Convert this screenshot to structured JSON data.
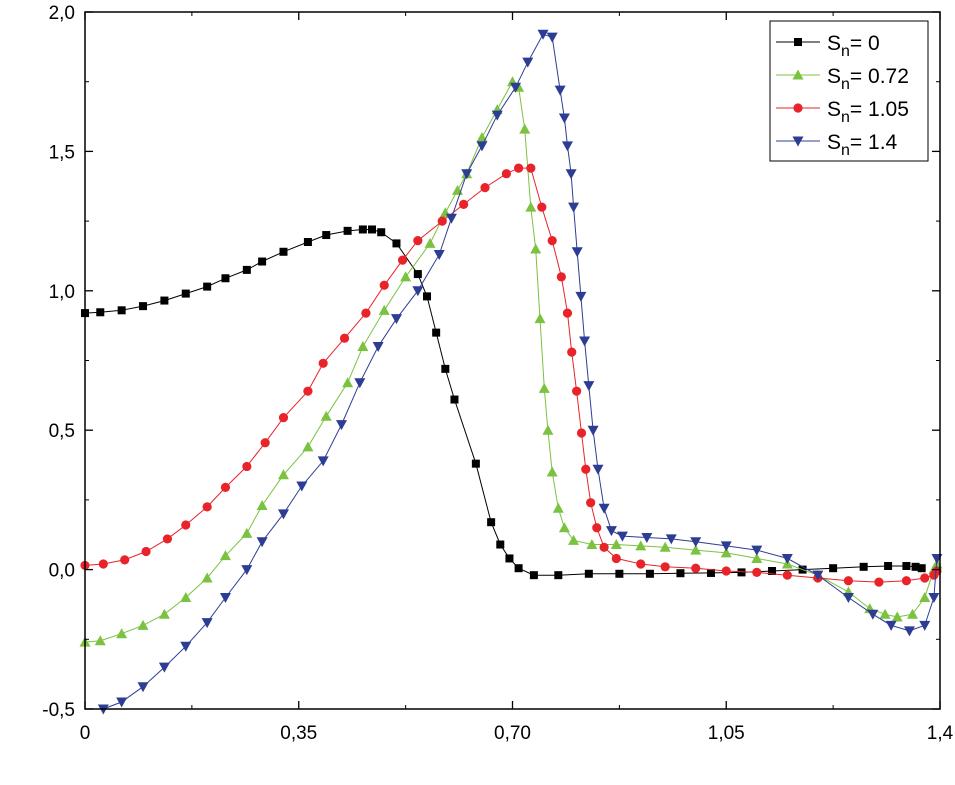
{
  "chart_data": {
    "type": "line",
    "title": "",
    "xlabel": "",
    "ylabel": "",
    "xlim": [
      0,
      1.4
    ],
    "ylim": [
      -0.5,
      2.0
    ],
    "grid": false,
    "legend_position": "top-right",
    "x_ticks": [
      {
        "value": 0,
        "label": "0"
      },
      {
        "value": 0.35,
        "label": "0,35"
      },
      {
        "value": 0.7,
        "label": "0,70"
      },
      {
        "value": 1.05,
        "label": "1,05"
      },
      {
        "value": 1.4,
        "label": "1,4"
      }
    ],
    "y_ticks": [
      {
        "value": -0.5,
        "label": "-0,5"
      },
      {
        "value": 0.0,
        "label": "0,0"
      },
      {
        "value": 0.5,
        "label": "0,5"
      },
      {
        "value": 1.0,
        "label": "1,0"
      },
      {
        "value": 1.5,
        "label": "1,5"
      },
      {
        "value": 2.0,
        "label": "2,0"
      }
    ],
    "series": [
      {
        "name": "Sn= 0",
        "legend_main": "S",
        "legend_sub": "n",
        "legend_value": "= 0",
        "color": "#000000",
        "marker": "square",
        "points": [
          [
            0.0,
            0.92
          ],
          [
            0.025,
            0.923
          ],
          [
            0.06,
            0.93
          ],
          [
            0.095,
            0.945
          ],
          [
            0.13,
            0.965
          ],
          [
            0.165,
            0.99
          ],
          [
            0.2,
            1.015
          ],
          [
            0.23,
            1.045
          ],
          [
            0.265,
            1.075
          ],
          [
            0.29,
            1.105
          ],
          [
            0.325,
            1.14
          ],
          [
            0.365,
            1.175
          ],
          [
            0.395,
            1.2
          ],
          [
            0.43,
            1.215
          ],
          [
            0.455,
            1.22
          ],
          [
            0.47,
            1.22
          ],
          [
            0.485,
            1.21
          ],
          [
            0.51,
            1.17
          ],
          [
            0.545,
            1.06
          ],
          [
            0.56,
            0.98
          ],
          [
            0.575,
            0.85
          ],
          [
            0.59,
            0.72
          ],
          [
            0.605,
            0.61
          ],
          [
            0.64,
            0.38
          ],
          [
            0.665,
            0.17
          ],
          [
            0.68,
            0.09
          ],
          [
            0.695,
            0.04
          ],
          [
            0.71,
            0.005
          ],
          [
            0.735,
            -0.02
          ],
          [
            0.775,
            -0.02
          ],
          [
            0.825,
            -0.015
          ],
          [
            0.875,
            -0.015
          ],
          [
            0.925,
            -0.015
          ],
          [
            0.975,
            -0.013
          ],
          [
            1.025,
            -0.012
          ],
          [
            1.075,
            -0.01
          ],
          [
            1.125,
            -0.005
          ],
          [
            1.175,
            0.0
          ],
          [
            1.225,
            0.005
          ],
          [
            1.275,
            0.01
          ],
          [
            1.315,
            0.013
          ],
          [
            1.345,
            0.013
          ],
          [
            1.36,
            0.01
          ],
          [
            1.37,
            0.005
          ]
        ]
      },
      {
        "name": "Sn= 0.72",
        "legend_main": "S",
        "legend_sub": "n",
        "legend_value": "= 0.72",
        "color": "#7cc241",
        "line_color": "#7cc241",
        "marker": "triangle-up",
        "points": [
          [
            0.0,
            -0.26
          ],
          [
            0.025,
            -0.255
          ],
          [
            0.06,
            -0.23
          ],
          [
            0.095,
            -0.2
          ],
          [
            0.13,
            -0.16
          ],
          [
            0.165,
            -0.1
          ],
          [
            0.2,
            -0.03
          ],
          [
            0.23,
            0.05
          ],
          [
            0.265,
            0.13
          ],
          [
            0.29,
            0.23
          ],
          [
            0.325,
            0.34
          ],
          [
            0.365,
            0.44
          ],
          [
            0.395,
            0.55
          ],
          [
            0.43,
            0.67
          ],
          [
            0.455,
            0.8
          ],
          [
            0.49,
            0.93
          ],
          [
            0.525,
            1.05
          ],
          [
            0.565,
            1.17
          ],
          [
            0.59,
            1.28
          ],
          [
            0.61,
            1.36
          ],
          [
            0.625,
            1.42
          ],
          [
            0.65,
            1.55
          ],
          [
            0.675,
            1.65
          ],
          [
            0.7,
            1.75
          ],
          [
            0.71,
            1.73
          ],
          [
            0.72,
            1.58
          ],
          [
            0.73,
            1.3
          ],
          [
            0.738,
            1.15
          ],
          [
            0.745,
            0.9
          ],
          [
            0.752,
            0.65
          ],
          [
            0.758,
            0.5
          ],
          [
            0.765,
            0.35
          ],
          [
            0.775,
            0.22
          ],
          [
            0.785,
            0.15
          ],
          [
            0.8,
            0.105
          ],
          [
            0.83,
            0.09
          ],
          [
            0.87,
            0.09
          ],
          [
            0.91,
            0.085
          ],
          [
            0.95,
            0.08
          ],
          [
            1.0,
            0.07
          ],
          [
            1.05,
            0.06
          ],
          [
            1.1,
            0.04
          ],
          [
            1.15,
            0.02
          ],
          [
            1.2,
            -0.02
          ],
          [
            1.25,
            -0.08
          ],
          [
            1.285,
            -0.14
          ],
          [
            1.31,
            -0.16
          ],
          [
            1.33,
            -0.17
          ],
          [
            1.355,
            -0.16
          ],
          [
            1.375,
            -0.1
          ],
          [
            1.39,
            0.0
          ],
          [
            1.395,
            0.02
          ]
        ]
      },
      {
        "name": "Sn= 1.05",
        "legend_main": "S",
        "legend_sub": "n",
        "legend_value": "= 1.05",
        "color": "#e8232a",
        "line_color": "#e8232a",
        "marker": "circle",
        "points": [
          [
            0.0,
            0.015
          ],
          [
            0.03,
            0.02
          ],
          [
            0.065,
            0.035
          ],
          [
            0.1,
            0.065
          ],
          [
            0.135,
            0.11
          ],
          [
            0.165,
            0.16
          ],
          [
            0.2,
            0.225
          ],
          [
            0.23,
            0.295
          ],
          [
            0.265,
            0.37
          ],
          [
            0.295,
            0.455
          ],
          [
            0.325,
            0.545
          ],
          [
            0.365,
            0.64
          ],
          [
            0.39,
            0.74
          ],
          [
            0.425,
            0.83
          ],
          [
            0.46,
            0.92
          ],
          [
            0.49,
            1.02
          ],
          [
            0.52,
            1.11
          ],
          [
            0.545,
            1.18
          ],
          [
            0.585,
            1.25
          ],
          [
            0.62,
            1.31
          ],
          [
            0.655,
            1.37
          ],
          [
            0.69,
            1.42
          ],
          [
            0.71,
            1.44
          ],
          [
            0.73,
            1.44
          ],
          [
            0.748,
            1.3
          ],
          [
            0.765,
            1.18
          ],
          [
            0.78,
            1.05
          ],
          [
            0.79,
            0.92
          ],
          [
            0.797,
            0.78
          ],
          [
            0.805,
            0.64
          ],
          [
            0.813,
            0.49
          ],
          [
            0.82,
            0.36
          ],
          [
            0.828,
            0.24
          ],
          [
            0.838,
            0.15
          ],
          [
            0.85,
            0.08
          ],
          [
            0.87,
            0.04
          ],
          [
            0.91,
            0.02
          ],
          [
            0.95,
            0.01
          ],
          [
            1.0,
            0.005
          ],
          [
            1.05,
            -0.005
          ],
          [
            1.1,
            -0.01
          ],
          [
            1.15,
            -0.02
          ],
          [
            1.2,
            -0.03
          ],
          [
            1.25,
            -0.04
          ],
          [
            1.3,
            -0.045
          ],
          [
            1.345,
            -0.04
          ],
          [
            1.375,
            -0.03
          ],
          [
            1.39,
            -0.02
          ],
          [
            1.395,
            -0.005
          ]
        ]
      },
      {
        "name": "Sn= 1.4",
        "legend_main": "S",
        "legend_sub": "n",
        "legend_value": "= 1.4",
        "color": "#2e3d94",
        "line_color": "#2e3d94",
        "marker": "triangle-down",
        "points": [
          [
            0.03,
            -0.5
          ],
          [
            0.06,
            -0.475
          ],
          [
            0.095,
            -0.42
          ],
          [
            0.13,
            -0.35
          ],
          [
            0.165,
            -0.275
          ],
          [
            0.2,
            -0.19
          ],
          [
            0.23,
            -0.1
          ],
          [
            0.265,
            0.0
          ],
          [
            0.29,
            0.1
          ],
          [
            0.325,
            0.2
          ],
          [
            0.355,
            0.3
          ],
          [
            0.39,
            0.39
          ],
          [
            0.42,
            0.52
          ],
          [
            0.45,
            0.67
          ],
          [
            0.48,
            0.8
          ],
          [
            0.51,
            0.9
          ],
          [
            0.545,
            1.0
          ],
          [
            0.58,
            1.13
          ],
          [
            0.6,
            1.26
          ],
          [
            0.625,
            1.42
          ],
          [
            0.65,
            1.52
          ],
          [
            0.675,
            1.63
          ],
          [
            0.705,
            1.73
          ],
          [
            0.725,
            1.82
          ],
          [
            0.75,
            1.92
          ],
          [
            0.765,
            1.91
          ],
          [
            0.778,
            1.72
          ],
          [
            0.785,
            1.62
          ],
          [
            0.79,
            1.52
          ],
          [
            0.796,
            1.42
          ],
          [
            0.8,
            1.3
          ],
          [
            0.806,
            1.14
          ],
          [
            0.812,
            0.98
          ],
          [
            0.818,
            0.82
          ],
          [
            0.825,
            0.66
          ],
          [
            0.832,
            0.5
          ],
          [
            0.84,
            0.36
          ],
          [
            0.85,
            0.22
          ],
          [
            0.862,
            0.14
          ],
          [
            0.88,
            0.12
          ],
          [
            0.92,
            0.115
          ],
          [
            0.96,
            0.11
          ],
          [
            1.0,
            0.1
          ],
          [
            1.05,
            0.085
          ],
          [
            1.1,
            0.07
          ],
          [
            1.15,
            0.04
          ],
          [
            1.2,
            -0.02
          ],
          [
            1.25,
            -0.1
          ],
          [
            1.29,
            -0.16
          ],
          [
            1.32,
            -0.2
          ],
          [
            1.35,
            -0.22
          ],
          [
            1.375,
            -0.2
          ],
          [
            1.39,
            -0.1
          ],
          [
            1.395,
            0.04
          ]
        ]
      }
    ]
  }
}
